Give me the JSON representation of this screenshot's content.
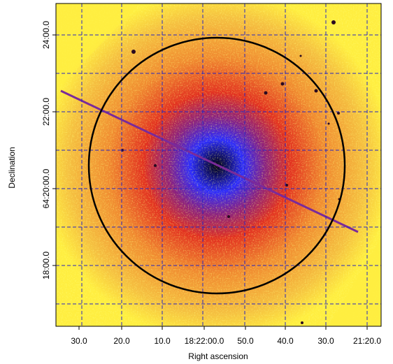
{
  "x_axis": {
    "label": "Right ascension",
    "ticks": [
      "30.0",
      "20.0",
      "10.0",
      "18:22:00.0",
      "50.0",
      "40.0",
      "30.0",
      "21:20.0"
    ]
  },
  "y_axis": {
    "label": "Declination",
    "ticks": [
      "24:00.0",
      "22:00.0",
      "64:20:00.0",
      "18:00.0"
    ]
  }
}
